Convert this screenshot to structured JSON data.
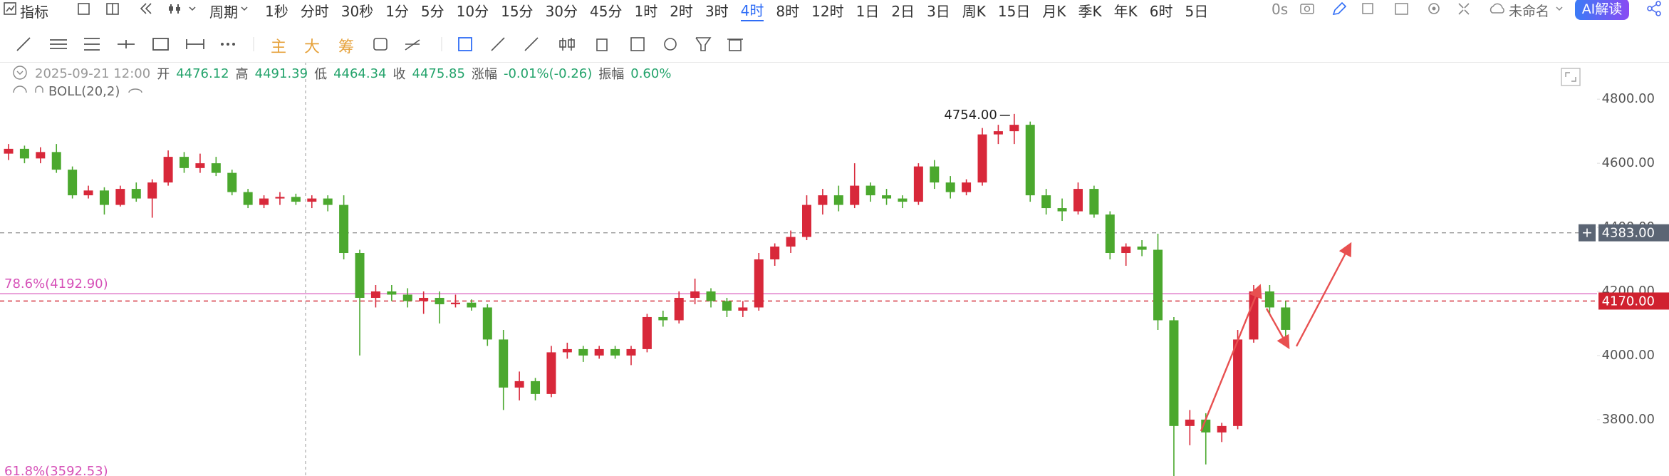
{
  "toolbar": {
    "indicator": "指标",
    "period": "周期",
    "intervals": [
      "1秒",
      "分时",
      "30秒",
      "1分",
      "5分",
      "10分",
      "15分",
      "30分",
      "45分",
      "1时",
      "2时",
      "3时",
      "4时",
      "8时",
      "12时",
      "1日",
      "2日",
      "3日",
      "周K",
      "15日",
      "月K",
      "季K",
      "年K",
      "6时",
      "5日"
    ],
    "active_index": 12,
    "timer": "0s",
    "doc_name": "未命名",
    "ai": "AI解读"
  },
  "tools": {
    "main": "主",
    "big": "大",
    "chips": "筹"
  },
  "info": {
    "date": "2025-09-21 12:00",
    "open_label": "开",
    "open": "4476.12",
    "high_label": "高",
    "high": "4491.39",
    "low_label": "低",
    "low": "4464.34",
    "close_label": "收",
    "close": "4475.85",
    "change_label": "涨幅",
    "change": "-0.01%(-0.26)",
    "amp_label": "振幅",
    "amp": "0.60%",
    "indicator": "BOLL(20,2)"
  },
  "chart_data": {
    "type": "candlestick",
    "up_color": "#d8283a",
    "down_color": "#4ba82e",
    "open": [
      4630,
      4645,
      4615,
      4635,
      4580,
      4500,
      4515,
      4470,
      4520,
      4490,
      4540,
      4620,
      4585,
      4600,
      4570,
      4510,
      4470,
      4490,
      4495,
      4480,
      4490,
      4470,
      4320,
      4180,
      4200,
      4190,
      4170,
      4180,
      4160,
      4165,
      4150,
      4050,
      3900,
      3920,
      3880,
      4010,
      4020,
      4000,
      4020,
      4000,
      4020,
      4120,
      4110,
      4180,
      4200,
      4170,
      4140,
      4150,
      4300,
      4340,
      4370,
      4470,
      4500,
      4470,
      4530,
      4500,
      4490,
      4480,
      4590,
      4540,
      4510,
      4540,
      4690,
      4700,
      4720,
      4500,
      4460,
      4450,
      4520,
      4440,
      4320,
      4340,
      4330,
      4110,
      3780,
      3800,
      3760,
      3780,
      4050,
      4200,
      4150
    ],
    "high": [
      4660,
      4655,
      4650,
      4660,
      4590,
      4530,
      4525,
      4530,
      4540,
      4550,
      4640,
      4635,
      4630,
      4620,
      4580,
      4520,
      4500,
      4510,
      4505,
      4500,
      4500,
      4500,
      4330,
      4220,
      4220,
      4210,
      4200,
      4200,
      4190,
      4175,
      4160,
      4080,
      3950,
      3930,
      4030,
      4040,
      4030,
      4030,
      4030,
      4030,
      4130,
      4140,
      4200,
      4240,
      4210,
      4180,
      4170,
      4320,
      4350,
      4390,
      4500,
      4520,
      4530,
      4600,
      4540,
      4520,
      4500,
      4600,
      4610,
      4560,
      4550,
      4710,
      4720,
      4754,
      4730,
      4520,
      4490,
      4540,
      4530,
      4450,
      4350,
      4360,
      4380,
      4120,
      3830,
      3820,
      3790,
      4080,
      4220,
      4220,
      4170
    ],
    "low": [
      4610,
      4600,
      4600,
      4570,
      4490,
      4490,
      4440,
      4465,
      4480,
      4430,
      4530,
      4570,
      4570,
      4560,
      4500,
      4460,
      4460,
      4470,
      4470,
      4460,
      4450,
      4300,
      4000,
      4150,
      4170,
      4150,
      4130,
      4100,
      4150,
      4140,
      4030,
      3830,
      3860,
      3860,
      3870,
      3990,
      3980,
      3990,
      3990,
      3970,
      4010,
      4090,
      4100,
      4160,
      4150,
      4120,
      4120,
      4140,
      4280,
      4320,
      4360,
      4440,
      4450,
      4460,
      4480,
      4470,
      4460,
      4470,
      4520,
      4490,
      4500,
      4530,
      4660,
      4660,
      4480,
      4440,
      4420,
      4440,
      4430,
      4300,
      4280,
      4310,
      4080,
      3620,
      3720,
      3660,
      3730,
      3770,
      4040,
      4130,
      4060
    ],
    "close": [
      4645,
      4615,
      4635,
      4580,
      4500,
      4515,
      4470,
      4520,
      4490,
      4540,
      4620,
      4585,
      4600,
      4570,
      4510,
      4470,
      4490,
      4495,
      4480,
      4490,
      4470,
      4320,
      4180,
      4200,
      4190,
      4170,
      4180,
      4160,
      4165,
      4150,
      4050,
      3900,
      3920,
      3880,
      4010,
      4020,
      4000,
      4020,
      4000,
      4020,
      4120,
      4110,
      4180,
      4200,
      4170,
      4140,
      4150,
      4300,
      4340,
      4370,
      4470,
      4500,
      4470,
      4530,
      4500,
      4490,
      4480,
      4590,
      4540,
      4510,
      4540,
      4690,
      4700,
      4720,
      4500,
      4460,
      4450,
      4520,
      4440,
      4320,
      4340,
      4330,
      4110,
      3780,
      3800,
      3760,
      3780,
      4050,
      4200,
      4150,
      4080
    ],
    "ylim": [
      3624,
      4916
    ],
    "yticks": [
      {
        "value": 3800,
        "label": "3800.00"
      },
      {
        "value": 4000,
        "label": "4000.00"
      },
      {
        "value": 4200,
        "label": "4200.00"
      },
      {
        "value": 4400,
        "label": "4400.00"
      },
      {
        "value": 4600,
        "label": "4600.00"
      },
      {
        "value": 4800,
        "label": "4800.00"
      }
    ],
    "max_marker": {
      "value": 4754,
      "label": "4754.00"
    },
    "hlines": [
      {
        "value": 4383,
        "label": "4383.00",
        "color": "#5b6574",
        "line_color": "#999999"
      },
      {
        "value": 4170,
        "label": "4170.00",
        "color": "#d0212f",
        "line_color": "#d0212f"
      }
    ],
    "fib_color": "#d651b8",
    "fib": [
      {
        "value": 4192.9,
        "label": "78.6%(4192.90)"
      },
      {
        "value": 3592.53,
        "label": "61.8%(3592.53)"
      }
    ]
  }
}
